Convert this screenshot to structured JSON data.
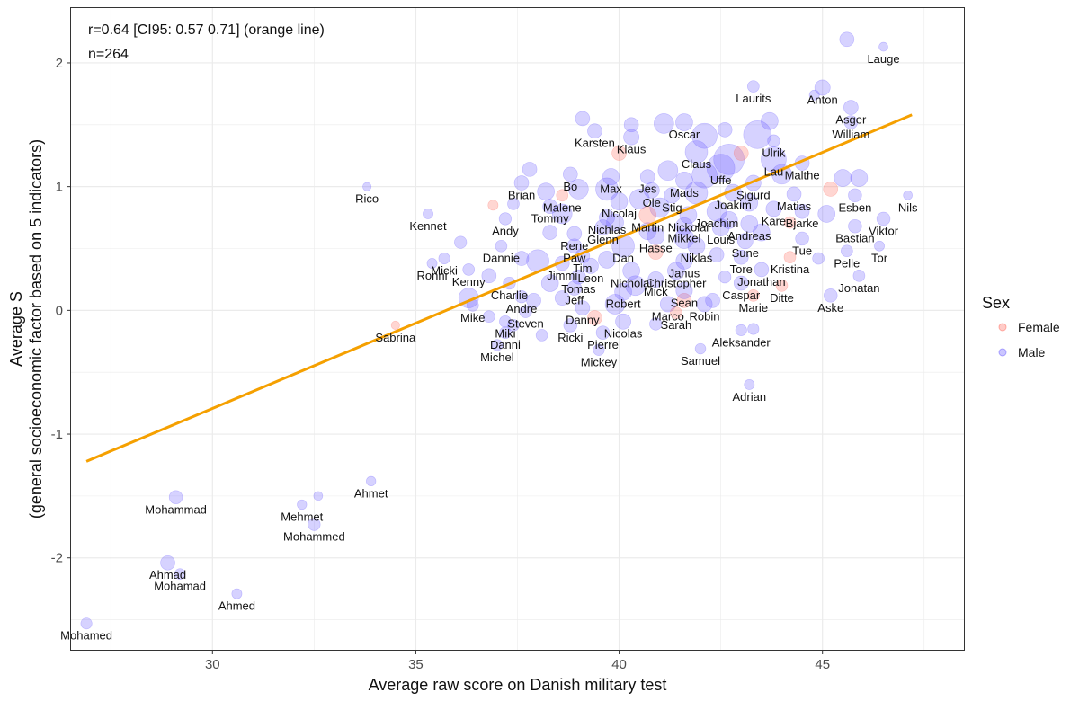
{
  "chart_data": {
    "type": "scatter",
    "xlabel": "Average raw score on Danish military test",
    "ylabel_line1": "Average S",
    "ylabel_line2": "(general socioeconomic factor based on 5 indicators)",
    "xlim": [
      26.5,
      48.5
    ],
    "ylim": [
      -2.75,
      2.45
    ],
    "xticks": [
      30,
      35,
      40,
      45
    ],
    "yticks": [
      -2,
      -1,
      0,
      1,
      2
    ],
    "annotation_line1": "r=0.64 [CI95: 0.57 0.71] (orange line)",
    "annotation_line2": "n=264",
    "legend": {
      "title": "Sex",
      "items": [
        {
          "label": "Female",
          "color": "#ff6b5e"
        },
        {
          "label": "Male",
          "color": "#6a5cff"
        }
      ]
    },
    "colors": {
      "female": "#ff6b5e",
      "male": "#6a5cff",
      "regression": "#f5a000",
      "grid": "#ebebeb",
      "frame": "#333333"
    },
    "regression_line": {
      "x": [
        26.9,
        47.2
      ],
      "y": [
        -1.22,
        1.58
      ]
    },
    "labeled_points": [
      {
        "name": "Lauge",
        "x": 46.5,
        "y": 2.13,
        "sex": "male",
        "size": 1.0
      },
      {
        "name": "Laurits",
        "x": 43.3,
        "y": 1.81,
        "sex": "male",
        "size": 1.5
      },
      {
        "name": "Anton",
        "x": 45.0,
        "y": 1.8,
        "sex": "male",
        "size": 2.2
      },
      {
        "name": "Asger",
        "x": 45.7,
        "y": 1.64,
        "sex": "male",
        "size": 2.0
      },
      {
        "name": "William",
        "x": 45.7,
        "y": 1.52,
        "sex": "male",
        "size": 1.8
      },
      {
        "name": "Oscar",
        "x": 41.6,
        "y": 1.52,
        "sex": "male",
        "size": 2.5
      },
      {
        "name": "Karsten",
        "x": 39.4,
        "y": 1.45,
        "sex": "male",
        "size": 2.0
      },
      {
        "name": "Klaus",
        "x": 40.3,
        "y": 1.4,
        "sex": "male",
        "size": 2.2
      },
      {
        "name": "Ulrik",
        "x": 43.8,
        "y": 1.37,
        "sex": "male",
        "size": 1.6
      },
      {
        "name": "Claus",
        "x": 41.9,
        "y": 1.28,
        "sex": "male",
        "size": 3.5
      },
      {
        "name": "Lau",
        "x": 43.8,
        "y": 1.22,
        "sex": "male",
        "size": 4.0
      },
      {
        "name": "Uffe",
        "x": 42.5,
        "y": 1.15,
        "sex": "male",
        "size": 4.5
      },
      {
        "name": "Malthe",
        "x": 44.5,
        "y": 1.19,
        "sex": "male",
        "size": 2.0
      },
      {
        "name": "Bo",
        "x": 38.8,
        "y": 1.1,
        "sex": "male",
        "size": 2.0
      },
      {
        "name": "Max",
        "x": 39.8,
        "y": 1.08,
        "sex": "male",
        "size": 2.4
      },
      {
        "name": "Jes",
        "x": 40.7,
        "y": 1.08,
        "sex": "male",
        "size": 2.0
      },
      {
        "name": "Mads",
        "x": 41.6,
        "y": 1.05,
        "sex": "male",
        "size": 2.5
      },
      {
        "name": "Sigurd",
        "x": 43.3,
        "y": 1.03,
        "sex": "male",
        "size": 2.2
      },
      {
        "name": "Brian",
        "x": 37.6,
        "y": 1.03,
        "sex": "male",
        "size": 2.0
      },
      {
        "name": "Rico",
        "x": 33.8,
        "y": 1.0,
        "sex": "male",
        "size": 0.9
      },
      {
        "name": "Matias",
        "x": 44.3,
        "y": 0.94,
        "sex": "male",
        "size": 2.0
      },
      {
        "name": "Esben",
        "x": 45.8,
        "y": 0.93,
        "sex": "male",
        "size": 1.8
      },
      {
        "name": "Nils",
        "x": 47.1,
        "y": 0.93,
        "sex": "male",
        "size": 1.0
      },
      {
        "name": "Ole",
        "x": 40.8,
        "y": 0.97,
        "sex": "male",
        "size": 2.2
      },
      {
        "name": "Joakim",
        "x": 42.8,
        "y": 0.95,
        "sex": "male",
        "size": 2.5
      },
      {
        "name": "Malene",
        "x": 38.6,
        "y": 0.93,
        "sex": "female",
        "size": 1.5
      },
      {
        "name": "Stig",
        "x": 41.3,
        "y": 0.93,
        "sex": "male",
        "size": 2.2
      },
      {
        "name": "Nicolaj",
        "x": 40.0,
        "y": 0.88,
        "sex": "male",
        "size": 2.5
      },
      {
        "name": "Tommy",
        "x": 38.3,
        "y": 0.84,
        "sex": "male",
        "size": 2.0
      },
      {
        "name": "Kare",
        "x": 43.8,
        "y": 0.82,
        "sex": "male",
        "size": 2.2
      },
      {
        "name": "Joachim",
        "x": 42.4,
        "y": 0.8,
        "sex": "male",
        "size": 3.0
      },
      {
        "name": "Bjarke",
        "x": 44.5,
        "y": 0.8,
        "sex": "male",
        "size": 2.0
      },
      {
        "name": "Martin",
        "x": 40.7,
        "y": 0.77,
        "sex": "female",
        "size": 2.5
      },
      {
        "name": "Nickolai",
        "x": 41.7,
        "y": 0.77,
        "sex": "male",
        "size": 2.5
      },
      {
        "name": "Nichlas",
        "x": 39.7,
        "y": 0.75,
        "sex": "male",
        "size": 2.2
      },
      {
        "name": "Viktor",
        "x": 46.5,
        "y": 0.74,
        "sex": "male",
        "size": 1.8
      },
      {
        "name": "Kennet",
        "x": 35.3,
        "y": 0.78,
        "sex": "male",
        "size": 1.2
      },
      {
        "name": "Andy",
        "x": 37.2,
        "y": 0.74,
        "sex": "male",
        "size": 1.6
      },
      {
        "name": "Andreas",
        "x": 43.2,
        "y": 0.7,
        "sex": "male",
        "size": 2.5
      },
      {
        "name": "Bastian",
        "x": 45.8,
        "y": 0.68,
        "sex": "male",
        "size": 1.8
      },
      {
        "name": "Mikkel",
        "x": 41.6,
        "y": 0.68,
        "sex": "male",
        "size": 2.5
      },
      {
        "name": "Glenn",
        "x": 39.6,
        "y": 0.67,
        "sex": "male",
        "size": 2.2
      },
      {
        "name": "Louis",
        "x": 42.5,
        "y": 0.67,
        "sex": "male",
        "size": 2.5
      },
      {
        "name": "Rene",
        "x": 38.9,
        "y": 0.62,
        "sex": "male",
        "size": 2.0
      },
      {
        "name": "Hasse",
        "x": 40.9,
        "y": 0.6,
        "sex": "male",
        "size": 2.5
      },
      {
        "name": "Tue",
        "x": 44.5,
        "y": 0.58,
        "sex": "male",
        "size": 1.8
      },
      {
        "name": "Sune",
        "x": 43.1,
        "y": 0.56,
        "sex": "male",
        "size": 2.2
      },
      {
        "name": "Dannie",
        "x": 37.1,
        "y": 0.52,
        "sex": "male",
        "size": 1.5
      },
      {
        "name": "Paw",
        "x": 38.9,
        "y": 0.52,
        "sex": "male",
        "size": 2.0
      },
      {
        "name": "Dan",
        "x": 40.1,
        "y": 0.52,
        "sex": "male",
        "size": 3.5
      },
      {
        "name": "Niklas",
        "x": 41.9,
        "y": 0.52,
        "sex": "male",
        "size": 2.5
      },
      {
        "name": "Tor",
        "x": 46.4,
        "y": 0.52,
        "sex": "male",
        "size": 1.2
      },
      {
        "name": "Tim",
        "x": 39.1,
        "y": 0.44,
        "sex": "male",
        "size": 2.0
      },
      {
        "name": "Pelle",
        "x": 45.6,
        "y": 0.48,
        "sex": "male",
        "size": 1.5
      },
      {
        "name": "Kristina",
        "x": 44.2,
        "y": 0.43,
        "sex": "female",
        "size": 1.5
      },
      {
        "name": "Tore",
        "x": 43.0,
        "y": 0.43,
        "sex": "male",
        "size": 2.0
      },
      {
        "name": "Micki",
        "x": 35.7,
        "y": 0.42,
        "sex": "male",
        "size": 1.4
      },
      {
        "name": "Janus",
        "x": 41.6,
        "y": 0.4,
        "sex": "male",
        "size": 2.4
      },
      {
        "name": "Jimmi",
        "x": 38.6,
        "y": 0.38,
        "sex": "male",
        "size": 2.0
      },
      {
        "name": "Leon",
        "x": 39.3,
        "y": 0.36,
        "sex": "male",
        "size": 2.2
      },
      {
        "name": "Nicholai",
        "x": 40.3,
        "y": 0.32,
        "sex": "male",
        "size": 2.5
      },
      {
        "name": "Christopher",
        "x": 41.4,
        "y": 0.32,
        "sex": "male",
        "size": 2.5
      },
      {
        "name": "Jonathan",
        "x": 43.5,
        "y": 0.33,
        "sex": "male",
        "size": 2.0
      },
      {
        "name": "Ronni",
        "x": 35.4,
        "y": 0.38,
        "sex": "male",
        "size": 1.2
      },
      {
        "name": "Kenny",
        "x": 36.3,
        "y": 0.33,
        "sex": "male",
        "size": 1.5
      },
      {
        "name": "Tomas",
        "x": 39.0,
        "y": 0.27,
        "sex": "male",
        "size": 2.0
      },
      {
        "name": "Mick",
        "x": 40.9,
        "y": 0.25,
        "sex": "male",
        "size": 2.2
      },
      {
        "name": "Jonatan",
        "x": 45.9,
        "y": 0.28,
        "sex": "male",
        "size": 1.5
      },
      {
        "name": "Charlie",
        "x": 37.3,
        "y": 0.22,
        "sex": "male",
        "size": 1.6
      },
      {
        "name": "Caspar",
        "x": 43.0,
        "y": 0.22,
        "sex": "male",
        "size": 2.0
      },
      {
        "name": "Ditte",
        "x": 44.0,
        "y": 0.2,
        "sex": "female",
        "size": 1.5
      },
      {
        "name": "Jeff",
        "x": 38.9,
        "y": 0.18,
        "sex": "male",
        "size": 2.0
      },
      {
        "name": "Sean",
        "x": 41.6,
        "y": 0.16,
        "sex": "male",
        "size": 2.4
      },
      {
        "name": "Robert",
        "x": 40.1,
        "y": 0.15,
        "sex": "male",
        "size": 2.5
      },
      {
        "name": "Marie",
        "x": 43.3,
        "y": 0.12,
        "sex": "female",
        "size": 1.5
      },
      {
        "name": "Andre",
        "x": 37.6,
        "y": 0.11,
        "sex": "male",
        "size": 1.6
      },
      {
        "name": "Aske",
        "x": 45.2,
        "y": 0.12,
        "sex": "male",
        "size": 1.8
      },
      {
        "name": "Marco",
        "x": 41.2,
        "y": 0.05,
        "sex": "male",
        "size": 2.2
      },
      {
        "name": "Robin",
        "x": 42.1,
        "y": 0.05,
        "sex": "male",
        "size": 2.2
      },
      {
        "name": "Danny",
        "x": 39.1,
        "y": 0.02,
        "sex": "male",
        "size": 2.0
      },
      {
        "name": "Mike",
        "x": 36.4,
        "y": 0.04,
        "sex": "male",
        "size": 1.5
      },
      {
        "name": "Steven",
        "x": 37.7,
        "y": -0.01,
        "sex": "male",
        "size": 1.6
      },
      {
        "name": "Sarah",
        "x": 41.4,
        "y": -0.02,
        "sex": "female",
        "size": 1.5
      },
      {
        "name": "Nicolas",
        "x": 40.1,
        "y": -0.09,
        "sex": "male",
        "size": 2.2
      },
      {
        "name": "Miki",
        "x": 37.2,
        "y": -0.09,
        "sex": "male",
        "size": 1.5
      },
      {
        "name": "Ricki",
        "x": 38.8,
        "y": -0.12,
        "sex": "male",
        "size": 1.8
      },
      {
        "name": "Aleksander",
        "x": 43.0,
        "y": -0.16,
        "sex": "male",
        "size": 1.4
      },
      {
        "name": "Danni",
        "x": 37.2,
        "y": -0.18,
        "sex": "male",
        "size": 1.5
      },
      {
        "name": "Pierre",
        "x": 39.6,
        "y": -0.18,
        "sex": "male",
        "size": 1.8
      },
      {
        "name": "Sabrina",
        "x": 34.5,
        "y": -0.12,
        "sex": "female",
        "size": 0.9
      },
      {
        "name": "Michel",
        "x": 37.0,
        "y": -0.28,
        "sex": "male",
        "size": 1.4
      },
      {
        "name": "Samuel",
        "x": 42.0,
        "y": -0.31,
        "sex": "male",
        "size": 1.3
      },
      {
        "name": "Mickey",
        "x": 39.5,
        "y": -0.32,
        "sex": "male",
        "size": 1.4
      },
      {
        "name": "Adrian",
        "x": 43.2,
        "y": -0.6,
        "sex": "male",
        "size": 1.2
      },
      {
        "name": "Ahmet",
        "x": 33.9,
        "y": -1.38,
        "sex": "male",
        "size": 1.1
      },
      {
        "name": "Mohammad",
        "x": 29.1,
        "y": -1.51,
        "sex": "male",
        "size": 1.8
      },
      {
        "name": "Mehmet",
        "x": 32.2,
        "y": -1.57,
        "sex": "male",
        "size": 1.1
      },
      {
        "name": "Mohammed",
        "x": 32.5,
        "y": -1.73,
        "sex": "male",
        "size": 1.6
      },
      {
        "name": "Ahmad",
        "x": 28.9,
        "y": -2.04,
        "sex": "male",
        "size": 2.0
      },
      {
        "name": "Mohamad",
        "x": 29.2,
        "y": -2.13,
        "sex": "male",
        "size": 1.3
      },
      {
        "name": "Ahmed",
        "x": 30.6,
        "y": -2.29,
        "sex": "male",
        "size": 1.2
      },
      {
        "name": "Mohamed",
        "x": 26.9,
        "y": -2.53,
        "sex": "male",
        "size": 1.4
      }
    ],
    "unlabeled_points": [
      {
        "x": 45.6,
        "y": 2.19,
        "sex": "male",
        "size": 2.0
      },
      {
        "x": 44.8,
        "y": 1.74,
        "sex": "male",
        "size": 1.2
      },
      {
        "x": 41.1,
        "y": 1.51,
        "sex": "male",
        "size": 3.0
      },
      {
        "x": 40.3,
        "y": 1.5,
        "sex": "male",
        "size": 2.0
      },
      {
        "x": 39.1,
        "y": 1.55,
        "sex": "male",
        "size": 2.0
      },
      {
        "x": 42.6,
        "y": 1.46,
        "sex": "male",
        "size": 2.0
      },
      {
        "x": 43.7,
        "y": 1.53,
        "sex": "male",
        "size": 2.5
      },
      {
        "x": 42.1,
        "y": 1.41,
        "sex": "male",
        "size": 4.0
      },
      {
        "x": 43.4,
        "y": 1.42,
        "sex": "male",
        "size": 4.5
      },
      {
        "x": 40.0,
        "y": 1.27,
        "sex": "female",
        "size": 2.0
      },
      {
        "x": 42.7,
        "y": 1.22,
        "sex": "male",
        "size": 5.0
      },
      {
        "x": 43.0,
        "y": 1.27,
        "sex": "female",
        "size": 2.0
      },
      {
        "x": 41.2,
        "y": 1.13,
        "sex": "male",
        "size": 3.0
      },
      {
        "x": 42.1,
        "y": 1.09,
        "sex": "male",
        "size": 4.0
      },
      {
        "x": 44.0,
        "y": 1.1,
        "sex": "male",
        "size": 3.0
      },
      {
        "x": 45.5,
        "y": 1.07,
        "sex": "male",
        "size": 2.5
      },
      {
        "x": 45.9,
        "y": 1.07,
        "sex": "male",
        "size": 2.5
      },
      {
        "x": 37.8,
        "y": 1.14,
        "sex": "male",
        "size": 2.0
      },
      {
        "x": 38.2,
        "y": 0.96,
        "sex": "male",
        "size": 2.5
      },
      {
        "x": 39.0,
        "y": 0.98,
        "sex": "male",
        "size": 3.0
      },
      {
        "x": 39.7,
        "y": 0.98,
        "sex": "male",
        "size": 3.5
      },
      {
        "x": 40.5,
        "y": 0.9,
        "sex": "male",
        "size": 3.0
      },
      {
        "x": 41.9,
        "y": 0.95,
        "sex": "male",
        "size": 3.5
      },
      {
        "x": 43.2,
        "y": 0.87,
        "sex": "male",
        "size": 2.5
      },
      {
        "x": 45.2,
        "y": 0.98,
        "sex": "female",
        "size": 2.0
      },
      {
        "x": 38.6,
        "y": 0.78,
        "sex": "male",
        "size": 3.0
      },
      {
        "x": 37.4,
        "y": 0.86,
        "sex": "male",
        "size": 1.5
      },
      {
        "x": 36.9,
        "y": 0.85,
        "sex": "female",
        "size": 1.2
      },
      {
        "x": 39.9,
        "y": 0.71,
        "sex": "male",
        "size": 2.5
      },
      {
        "x": 41.0,
        "y": 0.83,
        "sex": "male",
        "size": 3.0
      },
      {
        "x": 42.7,
        "y": 0.73,
        "sex": "male",
        "size": 2.5
      },
      {
        "x": 44.2,
        "y": 0.71,
        "sex": "female",
        "size": 1.5
      },
      {
        "x": 45.1,
        "y": 0.78,
        "sex": "male",
        "size": 2.5
      },
      {
        "x": 36.1,
        "y": 0.55,
        "sex": "male",
        "size": 1.6
      },
      {
        "x": 38.3,
        "y": 0.63,
        "sex": "male",
        "size": 2.0
      },
      {
        "x": 40.7,
        "y": 0.64,
        "sex": "male",
        "size": 2.5
      },
      {
        "x": 41.6,
        "y": 0.58,
        "sex": "male",
        "size": 3.0
      },
      {
        "x": 43.5,
        "y": 0.63,
        "sex": "male",
        "size": 2.5
      },
      {
        "x": 37.6,
        "y": 0.42,
        "sex": "male",
        "size": 2.0
      },
      {
        "x": 38.0,
        "y": 0.4,
        "sex": "male",
        "size": 3.5
      },
      {
        "x": 39.7,
        "y": 0.41,
        "sex": "male",
        "size": 2.5
      },
      {
        "x": 40.9,
        "y": 0.47,
        "sex": "female",
        "size": 2.0
      },
      {
        "x": 42.4,
        "y": 0.45,
        "sex": "male",
        "size": 2.0
      },
      {
        "x": 44.9,
        "y": 0.42,
        "sex": "male",
        "size": 1.5
      },
      {
        "x": 36.8,
        "y": 0.28,
        "sex": "male",
        "size": 2.0
      },
      {
        "x": 38.3,
        "y": 0.22,
        "sex": "male",
        "size": 2.5
      },
      {
        "x": 40.4,
        "y": 0.2,
        "sex": "male",
        "size": 3.0
      },
      {
        "x": 42.6,
        "y": 0.27,
        "sex": "male",
        "size": 1.6
      },
      {
        "x": 36.3,
        "y": 0.1,
        "sex": "male",
        "size": 3.0
      },
      {
        "x": 37.9,
        "y": 0.08,
        "sex": "male",
        "size": 2.0
      },
      {
        "x": 38.6,
        "y": 0.1,
        "sex": "male",
        "size": 2.0
      },
      {
        "x": 39.9,
        "y": 0.05,
        "sex": "male",
        "size": 3.0
      },
      {
        "x": 41.6,
        "y": 0.08,
        "sex": "female",
        "size": 2.0
      },
      {
        "x": 42.3,
        "y": 0.08,
        "sex": "male",
        "size": 2.0
      },
      {
        "x": 36.8,
        "y": -0.05,
        "sex": "male",
        "size": 1.5
      },
      {
        "x": 39.4,
        "y": -0.06,
        "sex": "female",
        "size": 2.0
      },
      {
        "x": 40.9,
        "y": -0.11,
        "sex": "male",
        "size": 1.6
      },
      {
        "x": 43.3,
        "y": -0.15,
        "sex": "male",
        "size": 1.4
      },
      {
        "x": 37.4,
        "y": -0.12,
        "sex": "male",
        "size": 1.5
      },
      {
        "x": 38.1,
        "y": -0.2,
        "sex": "male",
        "size": 1.5
      },
      {
        "x": 32.6,
        "y": -1.5,
        "sex": "male",
        "size": 1.0
      }
    ]
  }
}
